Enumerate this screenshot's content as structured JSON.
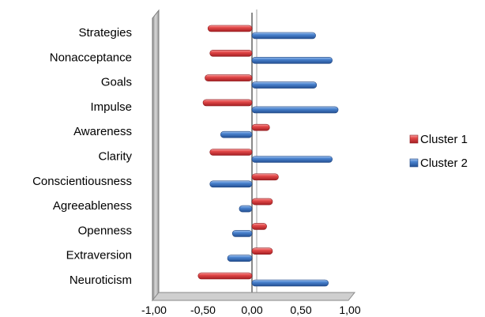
{
  "chart_data": {
    "type": "bar",
    "orientation": "horizontal",
    "style": "3d-cylinder",
    "categories": [
      "Strategies",
      "Nonacceptance",
      "Goals",
      "Impulse",
      "Awareness",
      "Clarity",
      "Conscientiousness",
      "Agreeableness",
      "Openness",
      "Extraversion",
      "Neuroticism"
    ],
    "series": [
      {
        "name": "Cluster 1",
        "color": "#e0373a",
        "values": [
          -0.45,
          -0.43,
          -0.48,
          -0.5,
          0.18,
          -0.43,
          0.27,
          0.21,
          0.15,
          0.21,
          -0.55
        ]
      },
      {
        "name": "Cluster 2",
        "color": "#3f78c8",
        "values": [
          0.65,
          0.82,
          0.66,
          0.88,
          -0.32,
          0.82,
          -0.43,
          -0.13,
          -0.2,
          -0.25,
          0.78
        ]
      }
    ],
    "xlim": [
      -1,
      1
    ],
    "xticks": [
      "-1,00",
      "-0,50",
      "0,00",
      "0,50",
      "1,00"
    ],
    "xtick_values": [
      -1,
      -0.5,
      0,
      0.5,
      1
    ],
    "legend": "right",
    "grid": false
  }
}
